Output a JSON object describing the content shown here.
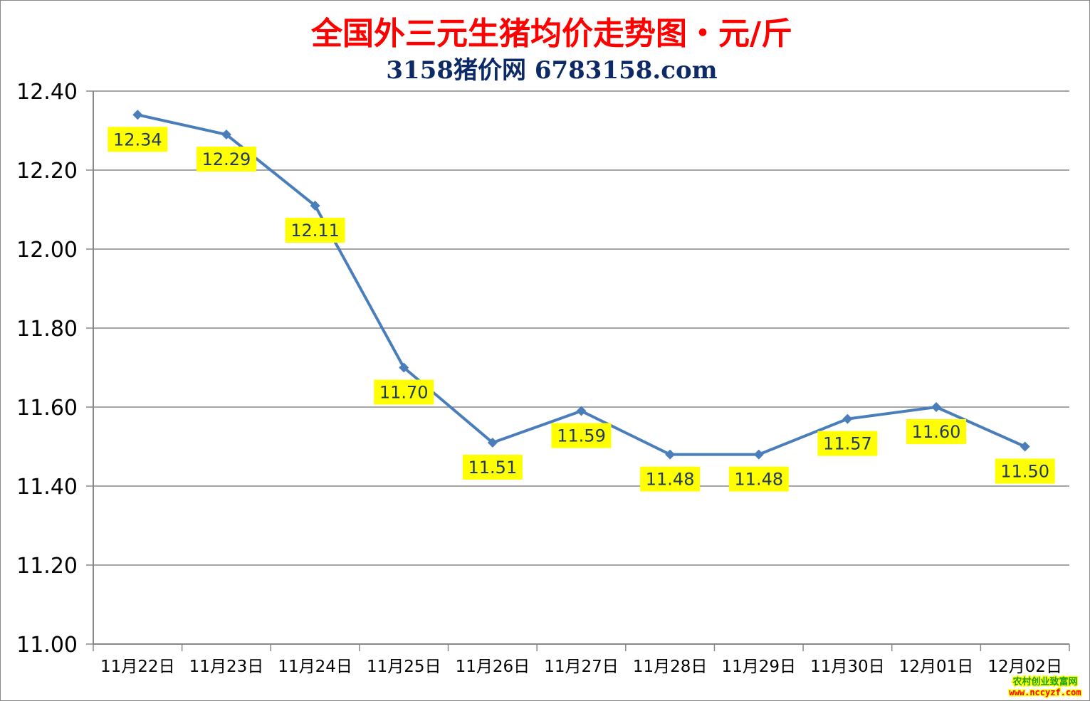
{
  "chart_data": {
    "type": "line",
    "title": "全国外三元生猪均价走势图・元/斤",
    "subtitle": "3158猪价网 6783158.com",
    "xlabel": "",
    "ylabel": "",
    "categories": [
      "11月22日",
      "11月23日",
      "11月24日",
      "11月25日",
      "11月26日",
      "11月27日",
      "11月28日",
      "11月29日",
      "11月30日",
      "12月01日",
      "12月02日"
    ],
    "series": [
      {
        "values": [
          12.34,
          12.29,
          12.11,
          11.7,
          11.51,
          11.59,
          11.48,
          11.48,
          11.57,
          11.6,
          11.5
        ]
      }
    ],
    "data_labels": [
      "12.34",
      "12.29",
      "12.11",
      "11.70",
      "11.51",
      "11.59",
      "11.48",
      "11.48",
      "11.57",
      "11.60",
      "11.50"
    ],
    "ylim": [
      11.0,
      12.4
    ],
    "yticks": [
      "11.00",
      "11.20",
      "11.40",
      "11.60",
      "11.80",
      "12.00",
      "12.20",
      "12.40"
    ],
    "grid": true,
    "legend": "none",
    "colors": {
      "line": "#4a7ebb",
      "label_bg": "#ffff00",
      "title": "#ff0000",
      "subtitle": "#0d2a66"
    }
  },
  "watermark": {
    "line1": "农村创业致富网",
    "line2": "www.nccyzf.com"
  }
}
